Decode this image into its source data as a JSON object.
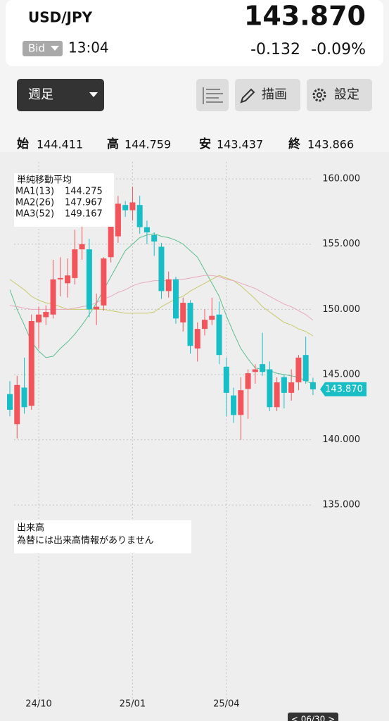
{
  "header": {
    "symbol": "USD/JPY",
    "price": "143.870",
    "price_type": "Bid",
    "time": "13:04",
    "change": "-0.132",
    "change_pct": "-0.09%"
  },
  "toolbar": {
    "period": "週足",
    "draw": "描画",
    "settings": "設定"
  },
  "ohlc": [
    {
      "label": "始",
      "value": "144.411"
    },
    {
      "label": "高",
      "value": "144.759"
    },
    {
      "label": "安",
      "value": "143.437"
    },
    {
      "label": "終",
      "value": "143.866"
    }
  ],
  "chart_data": {
    "type": "candlestick",
    "legend_title": "単純移動平均",
    "categories": [
      null,
      null,
      null,
      null,
      "24/10",
      null,
      null,
      null,
      null,
      null,
      null,
      null,
      null,
      null,
      null,
      null,
      null,
      "25/01",
      null,
      null,
      null,
      null,
      null,
      null,
      null,
      null,
      null,
      null,
      null,
      null,
      "25/04",
      null,
      null,
      null,
      null,
      null,
      null,
      null,
      null,
      null,
      null,
      null,
      null
    ],
    "open": [
      143.5,
      141.2,
      144.0,
      142.6,
      149.0,
      149.4,
      149.6,
      152.3,
      152.0,
      152.4,
      154.6,
      154.6,
      150.0,
      150.3,
      154.0,
      155.6,
      158.0,
      157.6,
      158.0,
      156.3,
      155.7,
      154.8,
      151.4,
      152.3,
      149.0,
      150.5,
      147.0,
      148.5,
      149.2,
      149.6,
      145.6,
      143.4,
      141.9,
      143.9,
      145.2,
      145.8,
      145.4,
      142.5,
      144.8,
      143.6,
      144.4,
      146.5,
      144.411
    ],
    "high": [
      144.5,
      144.9,
      146.3,
      149.6,
      150.2,
      150.3,
      153.8,
      154.0,
      153.9,
      156.1,
      156.8,
      155.4,
      151.2,
      154.0,
      158.6,
      158.7,
      158.3,
      159.4,
      158.7,
      156.8,
      155.9,
      155.1,
      152.9,
      152.5,
      150.9,
      150.7,
      149.0,
      150.0,
      150.9,
      150.6,
      146.3,
      144.0,
      144.8,
      145.4,
      145.8,
      148.2,
      146.0,
      144.8,
      145.0,
      145.4,
      146.5,
      147.9,
      144.759
    ],
    "low": [
      141.8,
      140.1,
      142.0,
      142.3,
      147.0,
      148.8,
      149.3,
      151.0,
      150.9,
      151.9,
      153.8,
      149.4,
      148.8,
      149.9,
      153.6,
      155.1,
      157.1,
      156.8,
      155.8,
      155.0,
      154.1,
      150.8,
      150.9,
      148.9,
      148.3,
      146.6,
      146.0,
      148.0,
      148.8,
      145.8,
      141.8,
      141.3,
      140.0,
      141.6,
      144.3,
      144.9,
      142.2,
      142.2,
      142.4,
      143.0,
      143.8,
      144.3,
      143.437
    ],
    "close": [
      142.3,
      144.2,
      142.5,
      149.1,
      149.6,
      149.8,
      152.3,
      152.4,
      152.6,
      154.6,
      155.0,
      150.0,
      150.2,
      153.9,
      158.2,
      158.1,
      157.6,
      158.2,
      156.3,
      155.9,
      155.2,
      151.4,
      152.3,
      149.3,
      150.5,
      147.2,
      148.5,
      149.2,
      149.5,
      146.5,
      143.6,
      141.9,
      143.8,
      145.1,
      145.4,
      145.2,
      142.5,
      144.4,
      143.6,
      144.4,
      146.3,
      144.5,
      143.866
    ],
    "up_color": "#f2545b",
    "down_color": "#17bec6",
    "lines": [
      {
        "name": "MA1(13)",
        "color": "#5cbf8e",
        "values": [
          151.5,
          150,
          148.8,
          147.5,
          146.8,
          146.3,
          146.4,
          147,
          147.5,
          148.1,
          148.8,
          149.6,
          150.5,
          151.5,
          152.5,
          153.5,
          154.5,
          155,
          155.5,
          155.7,
          155.8,
          155.6,
          155.5,
          155.3,
          155,
          154.5,
          154,
          153,
          152,
          151,
          149.5,
          148.2,
          147,
          146.2,
          145.5,
          145.4,
          145.3,
          145.1,
          145,
          144.9,
          144.8,
          144.5,
          144.275
        ]
      },
      {
        "name": "MA2(26)",
        "color": "#c9c96b",
        "values": [
          152.3,
          151.9,
          151.5,
          151,
          150.7,
          150.5,
          150.4,
          150.2,
          150,
          150,
          150,
          150,
          150,
          150,
          149.9,
          149.8,
          149.7,
          149.7,
          149.7,
          149.7,
          149.8,
          150.2,
          150.5,
          150.8,
          151,
          151.4,
          151.7,
          152,
          152.3,
          152.6,
          152.4,
          152.2,
          151.8,
          151.3,
          150.8,
          150.2,
          149.8,
          149.4,
          149,
          148.8,
          148.5,
          148.3,
          147.967
        ]
      },
      {
        "name": "MA3(52)",
        "color": "#e8a9bb",
        "values": [
          150.3,
          150.2,
          150.1,
          150,
          150,
          150,
          150,
          150,
          150,
          150.1,
          150.2,
          150.3,
          150.5,
          150.8,
          151,
          151.3,
          151.5,
          151.8,
          152,
          152.1,
          152.2,
          152.2,
          152.2,
          152.3,
          152.3,
          152.4,
          152.5,
          152.6,
          152.6,
          152.5,
          152.3,
          152.2,
          152,
          151.8,
          151.6,
          151.3,
          151,
          150.7,
          150.4,
          150.2,
          149.9,
          149.6,
          149.167
        ]
      }
    ],
    "ylim": [
      134.6,
      161.95
    ],
    "yticks": [
      {
        "value": 135,
        "label": "135.000"
      },
      {
        "value": 140,
        "label": "140.000"
      },
      {
        "value": 145,
        "label": "145.000"
      },
      {
        "value": 150,
        "label": "150.000"
      },
      {
        "value": 155,
        "label": "155.000"
      },
      {
        "value": 160,
        "label": "160.000"
      }
    ],
    "grid": true,
    "current_price": {
      "value": 143.87,
      "label": "143.870"
    }
  },
  "volume": {
    "title": "出来高",
    "message": "為替には出来高情報がありません"
  },
  "cursor_date": "< 06/30 >"
}
